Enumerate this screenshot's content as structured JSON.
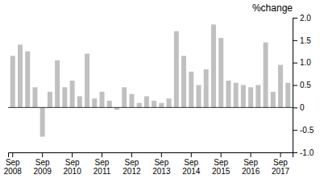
{
  "chart_data": {
    "type": "bar",
    "title": "%change",
    "categories": [
      "Sep\n2008",
      null,
      null,
      null,
      "Sep\n2009",
      null,
      null,
      null,
      "Sep\n2010",
      null,
      null,
      null,
      "Sep\n2011",
      null,
      null,
      null,
      "Sep\n2012",
      null,
      null,
      null,
      "Sep\n2013",
      null,
      null,
      null,
      "Sep\n2014",
      null,
      null,
      null,
      "Sep\n2015",
      null,
      null,
      null,
      "Sep\n2016",
      null,
      null,
      null,
      "Sep\n2017",
      null
    ],
    "values": [
      1.15,
      1.4,
      1.25,
      0.45,
      -0.65,
      0.35,
      1.05,
      0.45,
      0.6,
      0.25,
      1.2,
      0.2,
      0.35,
      0.15,
      -0.05,
      0.45,
      0.3,
      0.1,
      0.25,
      0.15,
      0.1,
      0.2,
      1.7,
      1.15,
      0.8,
      0.5,
      0.85,
      1.85,
      1.55,
      0.6,
      0.55,
      0.5,
      0.45,
      0.5,
      1.45,
      0.35,
      0.95,
      0.55
    ],
    "color": "#c0c0c0",
    "ylim": [
      -1.0,
      2.0
    ],
    "yticks": [
      {
        "value": -1.0,
        "label": "-1.0"
      },
      -0.5,
      0,
      0.5,
      {
        "value": 1.0,
        "label": "1.0"
      },
      1.5,
      {
        "value": 2.0,
        "label": "2.0"
      }
    ],
    "grid": false
  }
}
